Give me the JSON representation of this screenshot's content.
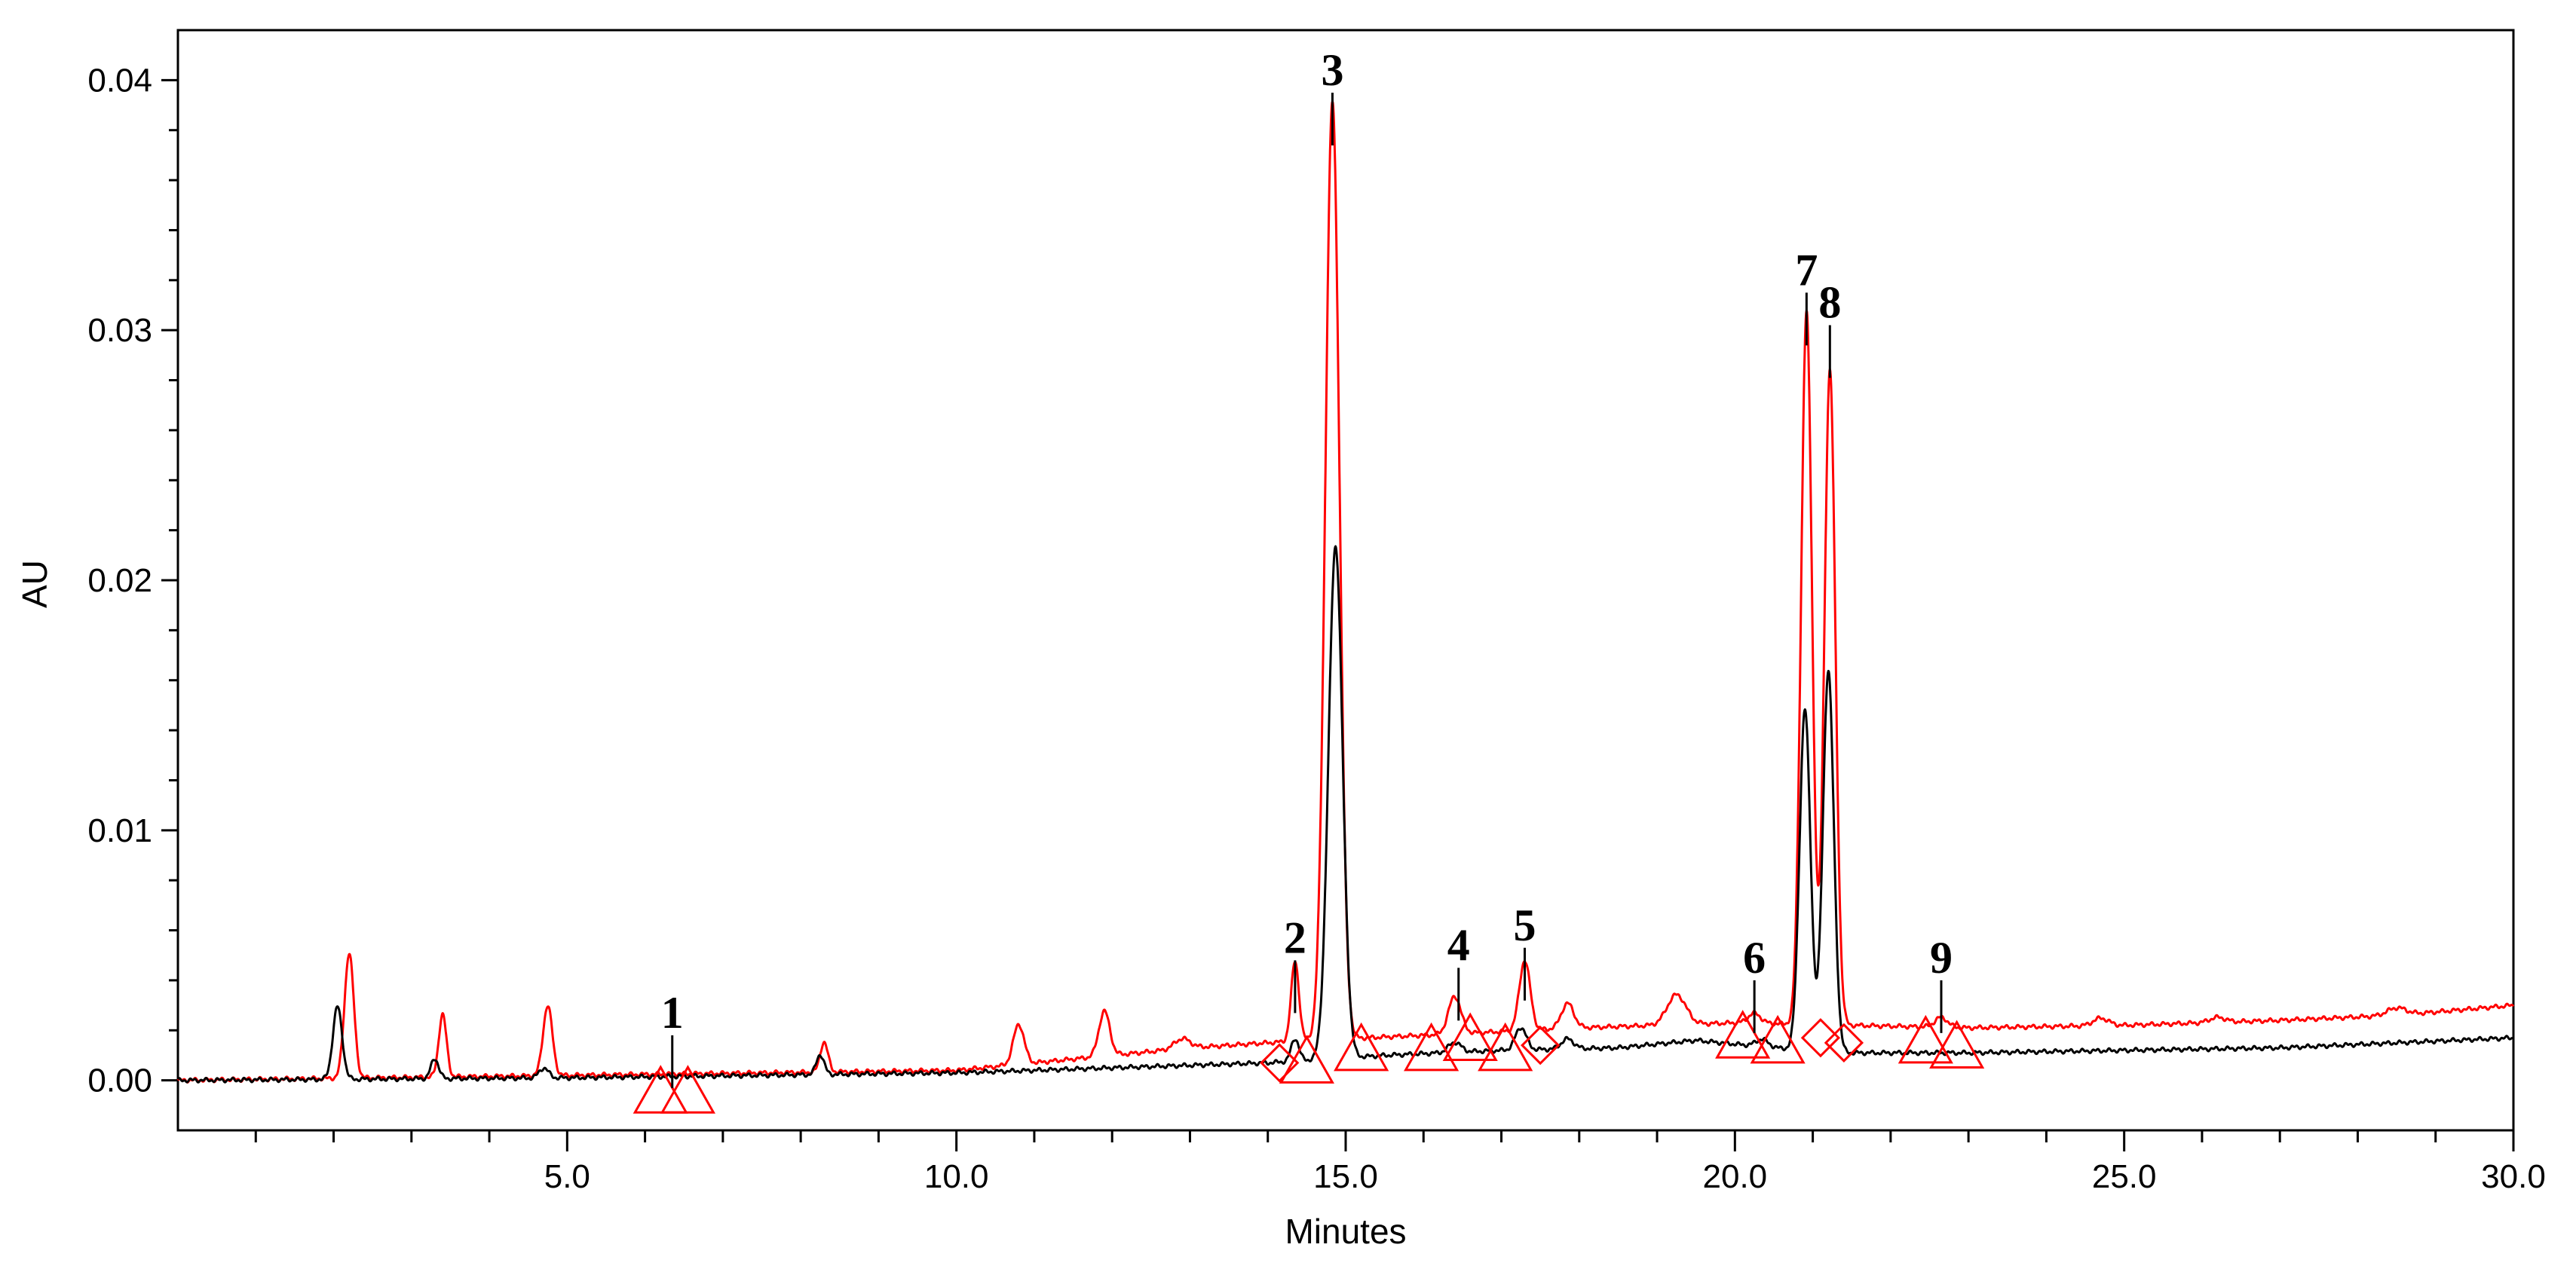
{
  "chart_data": {
    "type": "line",
    "title": "",
    "xlabel": "Minutes",
    "ylabel": "AU",
    "xlim": [
      0,
      30
    ],
    "ylim": [
      -0.002,
      0.042
    ],
    "x_ticks": [
      5.0,
      10.0,
      15.0,
      20.0,
      25.0,
      30.0
    ],
    "x_tick_labels": [
      "5.0",
      "10.0",
      "15.0",
      "20.0",
      "25.0",
      "30.0"
    ],
    "x_minor_ticks": [
      1,
      2,
      3,
      4,
      6,
      7,
      8,
      9,
      11,
      12,
      13,
      14,
      16,
      17,
      18,
      19,
      21,
      22,
      23,
      24,
      26,
      27,
      28,
      29
    ],
    "y_ticks": [
      0.0,
      0.01,
      0.02,
      0.03,
      0.04
    ],
    "y_tick_labels": [
      "0.00",
      "0.01",
      "0.02",
      "0.03",
      "0.04"
    ],
    "grid": false,
    "legend": "none",
    "colors": {
      "red": "#ff0000",
      "black": "#000000",
      "axis": "#000000"
    },
    "series": [
      {
        "color": "#ff0000",
        "baseline": [
          [
            0,
            0.0
          ],
          [
            5,
            0.0002
          ],
          [
            10,
            0.0004
          ],
          [
            12,
            0.001
          ],
          [
            13,
            0.0013
          ],
          [
            14.5,
            0.0016
          ],
          [
            16,
            0.0018
          ],
          [
            18,
            0.0021
          ],
          [
            20,
            0.0023
          ],
          [
            21.5,
            0.0022
          ],
          [
            23,
            0.0021
          ],
          [
            25,
            0.0022
          ],
          [
            27,
            0.0024
          ],
          [
            28.5,
            0.0026
          ],
          [
            30,
            0.003
          ]
        ],
        "peaks": [
          {
            "x": 2.2,
            "h": 0.005,
            "w": 0.06
          },
          {
            "x": 3.4,
            "h": 0.0025,
            "w": 0.05
          },
          {
            "x": 4.75,
            "h": 0.0028,
            "w": 0.06
          },
          {
            "x": 8.3,
            "h": 0.0012,
            "w": 0.05
          },
          {
            "x": 10.8,
            "h": 0.0016,
            "w": 0.07
          },
          {
            "x": 11.9,
            "h": 0.0018,
            "w": 0.07
          },
          {
            "x": 12.9,
            "h": 0.0004,
            "w": 0.1
          },
          {
            "x": 14.35,
            "h": 0.0032,
            "w": 0.05
          },
          {
            "x": 14.83,
            "h": 0.0375,
            "w": 0.09
          },
          {
            "x": 16.4,
            "h": 0.0015,
            "w": 0.08
          },
          {
            "x": 17.3,
            "h": 0.0028,
            "w": 0.07
          },
          {
            "x": 17.85,
            "h": 0.001,
            "w": 0.08
          },
          {
            "x": 19.25,
            "h": 0.0012,
            "w": 0.12
          },
          {
            "x": 20.25,
            "h": 0.0004,
            "w": 0.08
          },
          {
            "x": 20.92,
            "h": 0.0285,
            "w": 0.07
          },
          {
            "x": 21.22,
            "h": 0.0262,
            "w": 0.07
          },
          {
            "x": 22.65,
            "h": 0.0004,
            "w": 0.08
          },
          {
            "x": 24.7,
            "h": 0.0003,
            "w": 0.1
          },
          {
            "x": 26.2,
            "h": 0.0002,
            "w": 0.1
          },
          {
            "x": 28.5,
            "h": 0.0003,
            "w": 0.12
          }
        ]
      },
      {
        "color": "#000000",
        "baseline": [
          [
            0,
            0.0
          ],
          [
            5,
            0.0001
          ],
          [
            10,
            0.0003
          ],
          [
            12,
            0.0005
          ],
          [
            14,
            0.0007
          ],
          [
            15.5,
            0.001
          ],
          [
            17,
            0.0012
          ],
          [
            18.5,
            0.0013
          ],
          [
            19.5,
            0.0016
          ],
          [
            20.5,
            0.0013
          ],
          [
            21.5,
            0.0011
          ],
          [
            23,
            0.0011
          ],
          [
            25,
            0.0012
          ],
          [
            27,
            0.0013
          ],
          [
            30,
            0.0017
          ]
        ],
        "peaks": [
          {
            "x": 2.05,
            "h": 0.0029,
            "w": 0.06
          },
          {
            "x": 3.3,
            "h": 0.0008,
            "w": 0.05
          },
          {
            "x": 4.7,
            "h": 0.0004,
            "w": 0.06
          },
          {
            "x": 8.25,
            "h": 0.0008,
            "w": 0.05
          },
          {
            "x": 14.35,
            "h": 0.0009,
            "w": 0.05
          },
          {
            "x": 14.87,
            "h": 0.0205,
            "w": 0.09
          },
          {
            "x": 16.4,
            "h": 0.0004,
            "w": 0.08
          },
          {
            "x": 17.25,
            "h": 0.0009,
            "w": 0.07
          },
          {
            "x": 17.85,
            "h": 0.0004,
            "w": 0.08
          },
          {
            "x": 20.35,
            "h": 0.0003,
            "w": 0.08
          },
          {
            "x": 20.9,
            "h": 0.0136,
            "w": 0.07
          },
          {
            "x": 21.2,
            "h": 0.0152,
            "w": 0.07
          }
        ]
      }
    ],
    "peak_labels": [
      {
        "label": "1",
        "x": 6.35,
        "y": 0.0018
      },
      {
        "label": "2",
        "x": 14.35,
        "y": 0.0048
      },
      {
        "label": "3",
        "x": 14.83,
        "y": 0.0395
      },
      {
        "label": "4",
        "x": 16.45,
        "y": 0.0045
      },
      {
        "label": "5",
        "x": 17.3,
        "y": 0.0053
      },
      {
        "label": "6",
        "x": 20.25,
        "y": 0.004
      },
      {
        "label": "7",
        "x": 20.92,
        "y": 0.0315
      },
      {
        "label": "8",
        "x": 21.22,
        "y": 0.0302
      },
      {
        "label": "9",
        "x": 22.65,
        "y": 0.004
      }
    ],
    "integration_markers": [
      {
        "shape": "triangle",
        "x": 6.2,
        "y": -0.0005
      },
      {
        "shape": "triangle",
        "x": 6.55,
        "y": -0.0005
      },
      {
        "shape": "diamond",
        "x": 14.15,
        "y": 0.0007
      },
      {
        "shape": "triangle",
        "x": 14.5,
        "y": 0.0007
      },
      {
        "shape": "triangle",
        "x": 15.2,
        "y": 0.0012
      },
      {
        "shape": "triangle",
        "x": 16.1,
        "y": 0.0012
      },
      {
        "shape": "triangle",
        "x": 16.6,
        "y": 0.0016
      },
      {
        "shape": "triangle",
        "x": 17.05,
        "y": 0.0012
      },
      {
        "shape": "diamond",
        "x": 17.5,
        "y": 0.0014
      },
      {
        "shape": "triangle",
        "x": 20.1,
        "y": 0.0017
      },
      {
        "shape": "triangle",
        "x": 20.55,
        "y": 0.0015
      },
      {
        "shape": "diamond",
        "x": 21.1,
        "y": 0.0017
      },
      {
        "shape": "diamond",
        "x": 21.4,
        "y": 0.0015
      },
      {
        "shape": "triangle",
        "x": 22.45,
        "y": 0.0015
      },
      {
        "shape": "triangle",
        "x": 22.85,
        "y": 0.0013
      }
    ]
  }
}
